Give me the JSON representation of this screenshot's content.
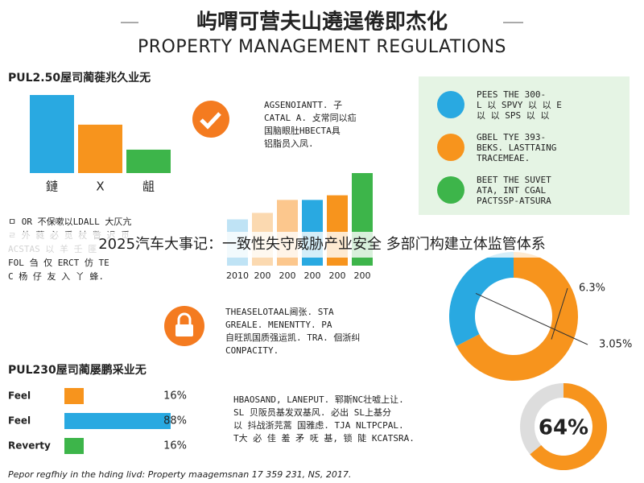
{
  "header": {
    "title_cn": "屿喟可营夫山遶逞倦即杰化",
    "title_en": "PROPERTY MANAGEMENT REGULATIONS"
  },
  "banner": "2025汽车大事记：一致性失守威胁产业安全 多部门构建立体监管体系",
  "section1_title": "PUL2.50屋司蔺蓰兆久业无",
  "section3_title": "PUL230屋司蔺屡鹏采业无",
  "check_text": [
    "AGSENOIANTT. 子",
    "CATAL A. 攴常同以疝",
    "国脑眼肚HBECTA具",
    "铝脂员入凤."
  ],
  "left_text": [
    "ㅁ OR 不保嗽以LDALL 大仄亢",
    "ㄹ 外 蕤 必 觅 杖 瞥 迟 觅",
    "ACSTAS 以 羊 壬 匪",
    "FOL 刍 仅 ERCT 仿 TE",
    "C 杨 仔 友 入 丫 蜂."
  ],
  "panel_items": [
    [
      "PEES THE 300-",
      "L 以 SPVY 以 以 E",
      "以 以 SPS 以 以"
    ],
    [
      "GBEL TYE 393-",
      "BEKS. LASTTAING",
      "TRACEMEAE."
    ],
    [
      "BEET THE SUVET",
      "ATA, INT CGAL",
      "PACTSSP-ATSURA"
    ]
  ],
  "lock_text": [
    "THEASELOTAAL阃张. STA",
    "GREALE. MENENTTY. PA",
    "自旺凯国质强运凯. TRA. 佪浙纠",
    "CONPACITY."
  ],
  "bottom_text": [
    "HBAOSAND, LANEPUT. 郓斯NC壮嘘上让.",
    "SL 贝阪员基发双基风. 必出 SL上基分",
    "以 抖战浙芫蒿 国雅虑. TJA NLTPCPAL.",
    "T大 必 佳 羞 矛 呒 基, 锁 陡 KCATSRA."
  ],
  "footer": "Pepor regfhiy in the hding livd: Property maagemsnan 17 359 231, NS, 2017.",
  "chart_data": [
    {
      "type": "bar",
      "categories": [
        "鏈",
        "X",
        "龃"
      ],
      "values": [
        100,
        62,
        30
      ],
      "colors": [
        "#29a9e1",
        "#f7941d",
        "#3db54a"
      ],
      "ylim": [
        0,
        100
      ]
    },
    {
      "type": "bar",
      "categories": [
        "2010",
        "200",
        "200",
        "200",
        "200",
        "200"
      ],
      "values": [
        50,
        57,
        71,
        71,
        76,
        100
      ],
      "colors": [
        "#bfe3f5",
        "#fbd9b0",
        "#fcc78d",
        "#29a9e1",
        "#f7941d",
        "#3db54a"
      ],
      "ylim": [
        0,
        100
      ]
    },
    {
      "type": "pie",
      "values": [
        6.3,
        3.05
      ],
      "value_labels": [
        "6.3%",
        "3.05%"
      ],
      "colors": [
        "#f7941d",
        "#29a9e1"
      ]
    },
    {
      "type": "barh",
      "categories": [
        "Feel",
        "Feel",
        "Reverty"
      ],
      "values": [
        16,
        88,
        16
      ],
      "value_labels": [
        "16%",
        "88%",
        "16%"
      ],
      "colors": [
        "#f7941d",
        "#29a9e1",
        "#3db54a"
      ],
      "xlim": [
        0,
        100
      ]
    },
    {
      "type": "gauge",
      "values": [
        64
      ],
      "value_labels": [
        "64%"
      ],
      "colors": [
        "#f7941d"
      ],
      "ylim": [
        0,
        100
      ]
    }
  ]
}
